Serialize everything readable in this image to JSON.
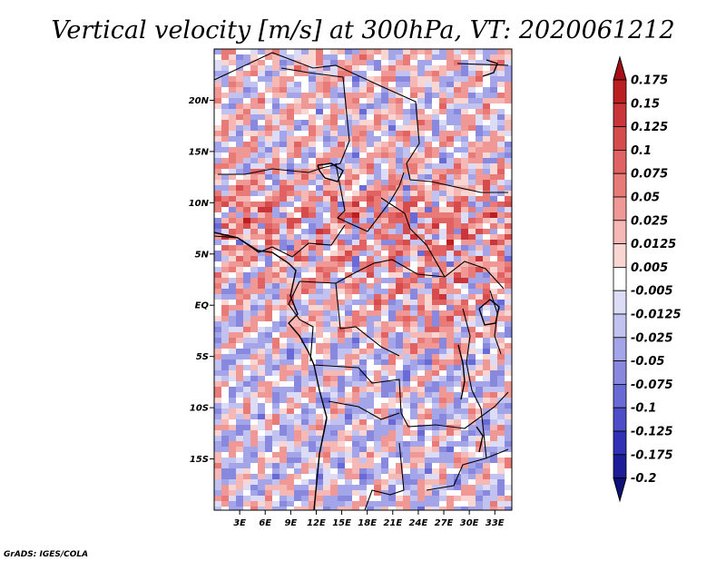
{
  "app": {
    "credit": "GrADS: IGES/COLA"
  },
  "chart_data": {
    "type": "heatmap",
    "title": "Vertical velocity [m/s] at 300hPa, VT: 2020061212",
    "variable": "Vertical velocity",
    "units": "m/s",
    "level": "300hPa",
    "valid_time": "2020061212",
    "xlim": [
      0,
      35
    ],
    "ylim": [
      -20,
      25
    ],
    "x_ticks": [
      {
        "value": 3,
        "label": "3E"
      },
      {
        "value": 6,
        "label": "6E"
      },
      {
        "value": 9,
        "label": "9E"
      },
      {
        "value": 12,
        "label": "12E"
      },
      {
        "value": 15,
        "label": "15E"
      },
      {
        "value": 18,
        "label": "18E"
      },
      {
        "value": 21,
        "label": "21E"
      },
      {
        "value": 24,
        "label": "24E"
      },
      {
        "value": 27,
        "label": "27E"
      },
      {
        "value": 30,
        "label": "30E"
      },
      {
        "value": 33,
        "label": "33E"
      }
    ],
    "y_ticks": [
      {
        "value": 20,
        "label": "20N"
      },
      {
        "value": 15,
        "label": "15N"
      },
      {
        "value": 10,
        "label": "10N"
      },
      {
        "value": 5,
        "label": "5N"
      },
      {
        "value": 0,
        "label": "EQ"
      },
      {
        "value": -5,
        "label": "5S"
      },
      {
        "value": -10,
        "label": "10S"
      },
      {
        "value": -15,
        "label": "15S"
      }
    ],
    "colorbar": {
      "labels": [
        "0.175",
        "0.15",
        "0.125",
        "0.1",
        "0.075",
        "0.05",
        "0.025",
        "0.0125",
        "0.005",
        "-0.005",
        "-0.0125",
        "-0.025",
        "-0.05",
        "-0.075",
        "-0.1",
        "-0.125",
        "-0.175",
        "-0.2"
      ],
      "colors": [
        "#a50f15",
        "#bb1f22",
        "#c9353a",
        "#d64c4c",
        "#e06262",
        "#e87b78",
        "#ef9896",
        "#f5b8b5",
        "#fad6d3",
        "#ffffff",
        "#dcdcf6",
        "#c2c2f0",
        "#a4a4e8",
        "#8888df",
        "#6a6ad6",
        "#4d4dc8",
        "#3131b6",
        "#1d1d99",
        "#10107a"
      ]
    }
  }
}
